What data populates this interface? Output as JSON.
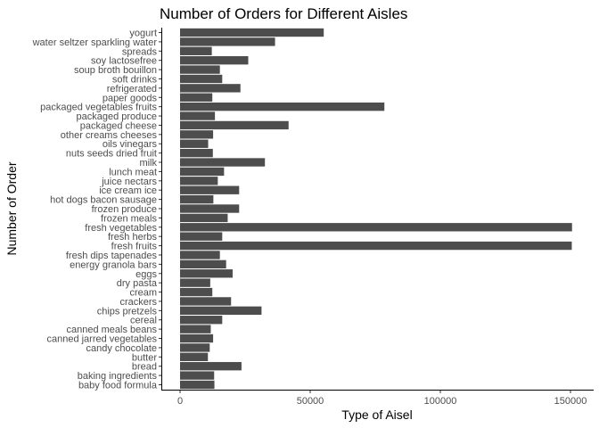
{
  "chart_data": {
    "type": "bar",
    "orientation": "horizontal",
    "title": "Number of Orders for Different Aisles",
    "xlabel": "Type of Aisel",
    "ylabel": "Number of Order",
    "xlim": [
      0,
      155000
    ],
    "xticks": [
      0,
      50000,
      100000,
      150000
    ],
    "xtick_labels": [
      "0",
      "50000",
      "100000",
      "150000"
    ],
    "grid": false,
    "categories": [
      "baby food formula",
      "baking ingredients",
      "bread",
      "butter",
      "candy chocolate",
      "canned jarred vegetables",
      "canned meals beans",
      "cereal",
      "chips pretzels",
      "crackers",
      "cream",
      "dry pasta",
      "eggs",
      "energy granola bars",
      "fresh dips tapenades",
      "fresh fruits",
      "fresh herbs",
      "fresh vegetables",
      "frozen meals",
      "frozen produce",
      "hot dogs bacon sausage",
      "ice cream ice",
      "juice nectars",
      "lunch meat",
      "milk",
      "nuts seeds dried fruit",
      "oils vinegars",
      "other creams cheeses",
      "packaged cheese",
      "packaged produce",
      "packaged vegetables fruits",
      "paper goods",
      "refrigerated",
      "soft drinks",
      "soup broth bouillon",
      "soy lactosefree",
      "spreads",
      "water seltzer sparkling water",
      "yogurt"
    ],
    "values": [
      13200,
      13100,
      23600,
      10700,
      11400,
      12700,
      11800,
      16200,
      31300,
      19600,
      12400,
      11600,
      20200,
      17700,
      15300,
      150500,
      16200,
      150600,
      18300,
      22700,
      12800,
      22700,
      14500,
      16900,
      32600,
      12600,
      10800,
      12700,
      41700,
      13400,
      78500,
      12400,
      23200,
      16200,
      15300,
      26200,
      12200,
      36500,
      55200
    ],
    "bar_color": "#4d4d4d"
  }
}
